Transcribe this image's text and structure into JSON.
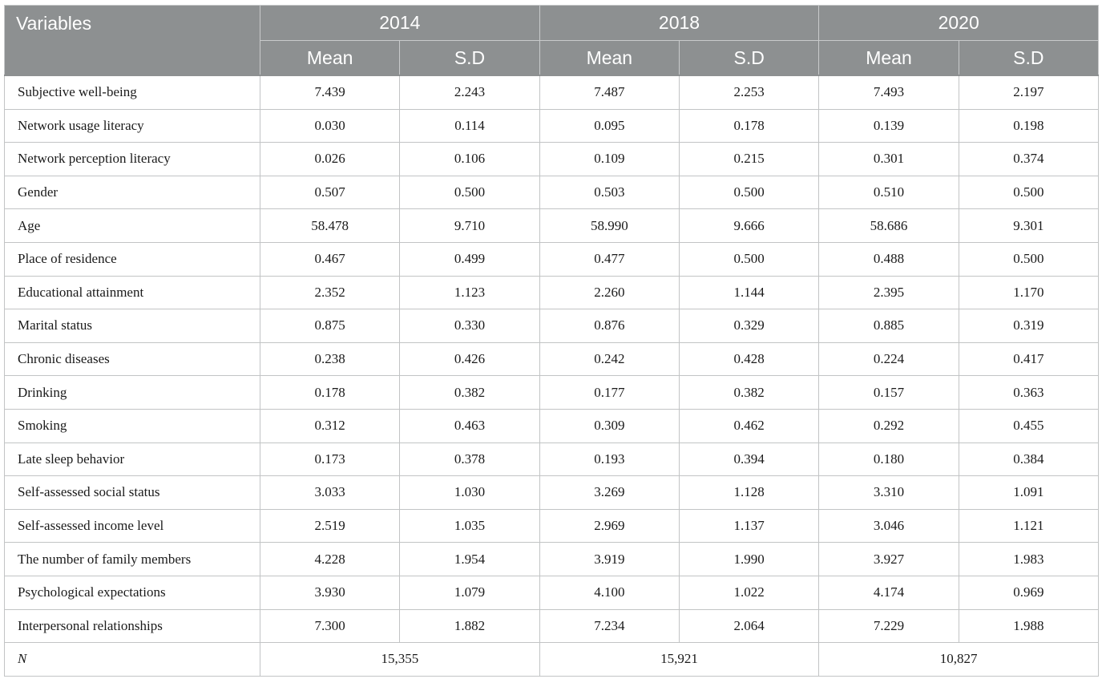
{
  "table": {
    "header": {
      "variables_label": "Variables",
      "years": [
        "2014",
        "2018",
        "2020"
      ],
      "sub_labels": [
        "Mean",
        "S.D",
        "Mean",
        "S.D",
        "Mean",
        "S.D"
      ]
    },
    "rows": [
      {
        "label": "Subjective well-being",
        "values": [
          "7.439",
          "2.243",
          "7.487",
          "2.253",
          "7.493",
          "2.197"
        ]
      },
      {
        "label": "Network usage literacy",
        "values": [
          "0.030",
          "0.114",
          "0.095",
          "0.178",
          "0.139",
          "0.198"
        ]
      },
      {
        "label": "Network perception literacy",
        "values": [
          "0.026",
          "0.106",
          "0.109",
          "0.215",
          "0.301",
          "0.374"
        ]
      },
      {
        "label": "Gender",
        "values": [
          "0.507",
          "0.500",
          "0.503",
          "0.500",
          "0.510",
          "0.500"
        ]
      },
      {
        "label": "Age",
        "values": [
          "58.478",
          "9.710",
          "58.990",
          "9.666",
          "58.686",
          "9.301"
        ]
      },
      {
        "label": "Place of residence",
        "values": [
          "0.467",
          "0.499",
          "0.477",
          "0.500",
          "0.488",
          "0.500"
        ]
      },
      {
        "label": "Educational attainment",
        "values": [
          "2.352",
          "1.123",
          "2.260",
          "1.144",
          "2.395",
          "1.170"
        ]
      },
      {
        "label": "Marital status",
        "values": [
          "0.875",
          "0.330",
          "0.876",
          "0.329",
          "0.885",
          "0.319"
        ]
      },
      {
        "label": "Chronic diseases",
        "values": [
          "0.238",
          "0.426",
          "0.242",
          "0.428",
          "0.224",
          "0.417"
        ]
      },
      {
        "label": "Drinking",
        "values": [
          "0.178",
          "0.382",
          "0.177",
          "0.382",
          "0.157",
          "0.363"
        ]
      },
      {
        "label": "Smoking",
        "values": [
          "0.312",
          "0.463",
          "0.309",
          "0.462",
          "0.292",
          "0.455"
        ]
      },
      {
        "label": "Late sleep behavior",
        "values": [
          "0.173",
          "0.378",
          "0.193",
          "0.394",
          "0.180",
          "0.384"
        ]
      },
      {
        "label": "Self-assessed social status",
        "values": [
          "3.033",
          "1.030",
          "3.269",
          "1.128",
          "3.310",
          "1.091"
        ]
      },
      {
        "label": "Self-assessed income level",
        "values": [
          "2.519",
          "1.035",
          "2.969",
          "1.137",
          "3.046",
          "1.121"
        ]
      },
      {
        "label": "The number of family members",
        "values": [
          "4.228",
          "1.954",
          "3.919",
          "1.990",
          "3.927",
          "1.983"
        ]
      },
      {
        "label": "Psychological expectations",
        "values": [
          "3.930",
          "1.079",
          "4.100",
          "1.022",
          "4.174",
          "0.969"
        ]
      },
      {
        "label": "Interpersonal relationships",
        "values": [
          "7.300",
          "1.882",
          "7.234",
          "2.064",
          "7.229",
          "1.988"
        ]
      }
    ],
    "n_row": {
      "label": "N",
      "values": [
        "15,355",
        "15,921",
        "10,827"
      ]
    }
  }
}
